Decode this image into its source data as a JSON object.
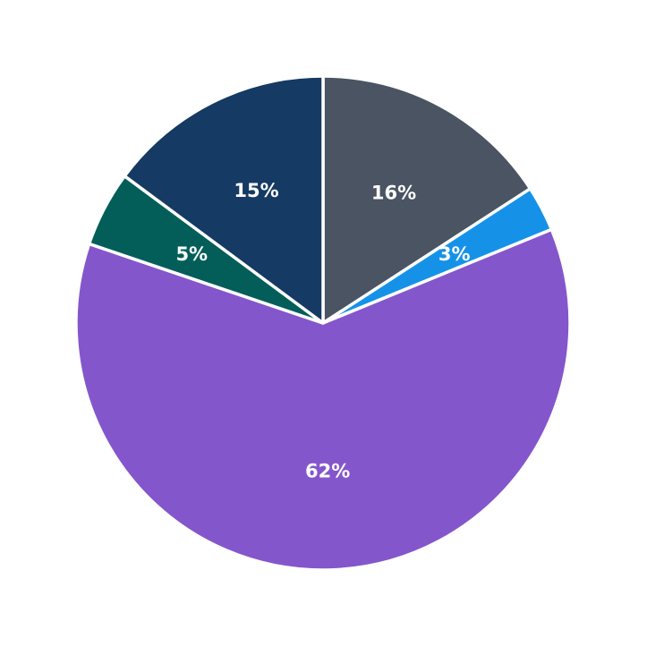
{
  "chart_data": {
    "type": "pie",
    "title": "",
    "start": "top",
    "direction": "clockwise",
    "legend": "none",
    "slices": [
      {
        "label": "16%",
        "value": 16,
        "color": "#4a5463"
      },
      {
        "label": "3%",
        "value": 3,
        "color": "#1592e8"
      },
      {
        "label": "62%",
        "value": 62,
        "color": "#8456cc"
      },
      {
        "label": "5%",
        "value": 5,
        "color": "#035e5a"
      },
      {
        "label": "15%",
        "value": 15,
        "color": "#153a63"
      }
    ]
  }
}
